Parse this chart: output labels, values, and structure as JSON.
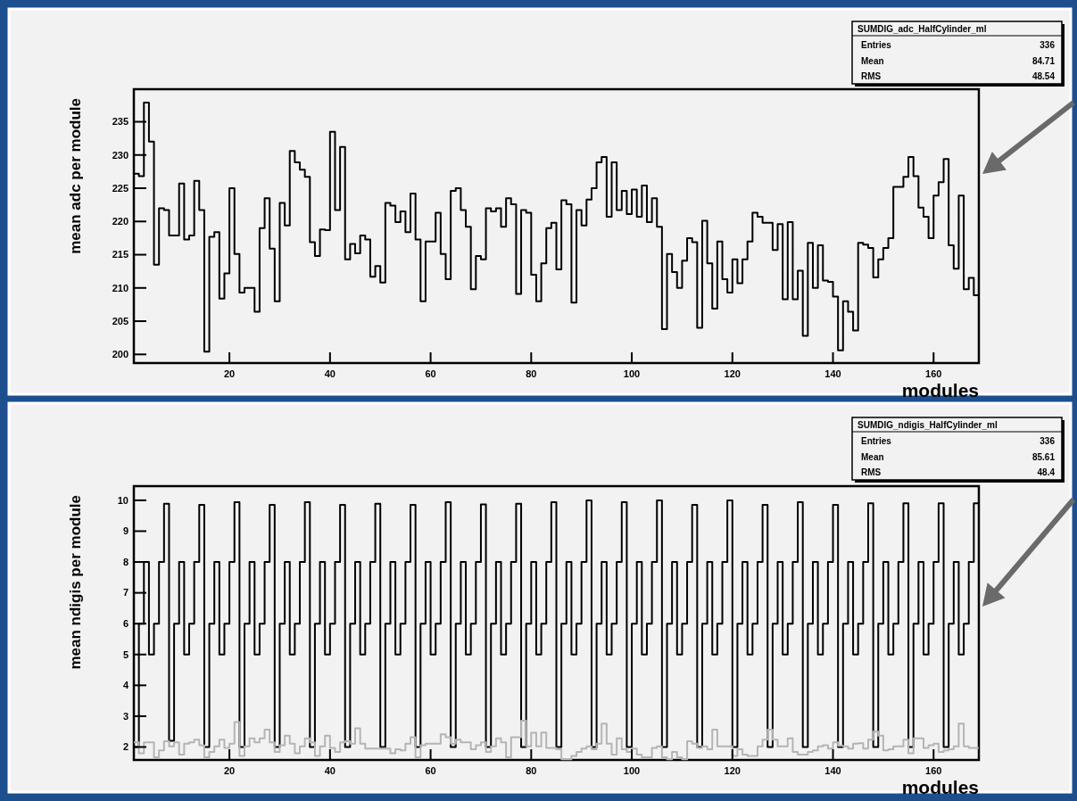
{
  "chart_data": [
    {
      "type": "histogram",
      "title": "SUMDIG_adc_HalfCylinder_ml",
      "xlabel": "modules",
      "ylabel": "mean adc per module",
      "annotations": [
        "Entries 336",
        "Mean 84.71",
        "RMS 48.54"
      ],
      "xlim": [
        1,
        169
      ],
      "xticks": [
        20,
        40,
        60,
        80,
        100,
        120,
        140,
        160
      ],
      "ylim": [
        198.7,
        239.9
      ],
      "yticks": [
        200,
        205,
        210,
        215,
        220,
        225,
        230,
        235
      ],
      "bins": [
        1,
        2,
        3,
        4,
        5,
        6,
        7,
        8,
        9,
        10,
        11,
        12,
        13,
        14,
        15,
        16,
        17,
        18,
        19,
        20,
        21,
        22,
        23,
        24,
        25,
        26,
        27,
        28,
        29,
        30,
        31,
        32,
        33,
        34,
        35,
        36,
        37,
        38,
        39,
        40,
        41,
        42,
        43,
        44,
        45,
        46,
        47,
        48,
        49,
        50,
        51,
        52,
        53,
        54,
        55,
        56,
        57,
        58,
        59,
        60,
        61,
        62,
        63,
        64,
        65,
        66,
        67,
        68,
        69,
        70,
        71,
        72,
        73,
        74,
        75,
        76,
        77,
        78,
        79,
        80,
        81,
        82,
        83,
        84,
        85,
        86,
        87,
        88,
        89,
        90,
        91,
        92,
        93,
        94,
        95,
        96,
        97,
        98,
        99,
        100,
        101,
        102,
        103,
        104,
        105,
        106,
        107,
        108,
        109,
        110,
        111,
        112,
        113,
        114,
        115,
        116,
        117,
        118,
        119,
        120,
        121,
        122,
        123,
        124,
        125,
        126,
        127,
        128,
        129,
        130,
        131,
        132,
        133,
        134,
        135,
        136,
        137,
        138,
        139,
        140,
        141,
        142,
        143,
        144,
        145,
        146,
        147,
        148,
        149,
        150,
        151,
        152,
        153,
        154,
        155,
        156,
        157,
        158,
        159,
        160,
        161,
        162,
        163,
        164,
        165,
        166,
        167,
        168,
        169
      ],
      "color": "#000000",
      "values": [
        227.2,
        226.8,
        237.9,
        232.0,
        213.5,
        222.0,
        221.7,
        217.9,
        217.9,
        225.7,
        217.3,
        217.9,
        226.1,
        221.7,
        200.4,
        217.7,
        218.4,
        208.4,
        212.2,
        225.0,
        215.1,
        209.3,
        210.0,
        210.0,
        206.4,
        219.0,
        223.5,
        215.9,
        208.0,
        222.8,
        219.4,
        230.6,
        228.9,
        227.8,
        226.7,
        216.9,
        214.8,
        218.8,
        218.7,
        233.5,
        221.7,
        231.2,
        214.3,
        216.6,
        215.2,
        217.9,
        217.3,
        211.7,
        213.3,
        210.8,
        222.8,
        222.4,
        219.9,
        221.5,
        218.4,
        224.2,
        217.3,
        208.0,
        217.0,
        217.0,
        221.3,
        215.1,
        211.3,
        224.6,
        225.0,
        221.7,
        219.2,
        209.8,
        214.8,
        214.3,
        222.0,
        221.5,
        222.0,
        219.2,
        223.5,
        222.6,
        209.1,
        221.7,
        221.3,
        212.0,
        208.0,
        213.7,
        219.0,
        219.8,
        212.8,
        223.2,
        222.6,
        207.8,
        221.7,
        219.4,
        223.3,
        225.0,
        228.9,
        229.7,
        220.7,
        228.9,
        221.7,
        224.6,
        221.1,
        224.8,
        220.7,
        225.4,
        219.9,
        223.5,
        219.2,
        203.8,
        215.1,
        212.4,
        210.0,
        214.1,
        217.5,
        216.9,
        204.0,
        220.1,
        213.7,
        206.9,
        217.0,
        211.3,
        209.3,
        214.3,
        210.7,
        214.3,
        217.0,
        221.3,
        220.7,
        219.8,
        219.8,
        215.7,
        219.6,
        208.3,
        219.9,
        208.3,
        212.6,
        202.8,
        216.8,
        210.0,
        216.4,
        211.1,
        210.9,
        208.7,
        200.6,
        208.0,
        206.4,
        203.6,
        216.8,
        216.5,
        216.0,
        211.6,
        214.3,
        216.0,
        217.5,
        225.2,
        225.2,
        226.7,
        229.7,
        226.8,
        222.1,
        220.7,
        217.5,
        223.9,
        225.9,
        229.4,
        216.4,
        212.9,
        223.9,
        209.8,
        211.5,
        208.9
      ]
    },
    {
      "type": "histogram",
      "title": "SUMDIG_ndigis_HalfCylinder_ml",
      "xlabel": "modules",
      "ylabel": "mean ndigis per module",
      "annotations": [
        "Entries 336",
        "Mean 85.61",
        "RMS 48.4"
      ],
      "xlim": [
        1,
        169
      ],
      "xticks": [
        20,
        40,
        60,
        80,
        100,
        120,
        140,
        160
      ],
      "ylim": [
        1.58,
        10.46
      ],
      "yticks": [
        2,
        3,
        4,
        5,
        6,
        7,
        8,
        9,
        10
      ],
      "bins": [
        1,
        2,
        3,
        4,
        5,
        6,
        7,
        8,
        9,
        10,
        11,
        12,
        13,
        14,
        15,
        16,
        17,
        18,
        19,
        20,
        21,
        22,
        23,
        24,
        25,
        26,
        27,
        28,
        29,
        30,
        31,
        32,
        33,
        34,
        35,
        36,
        37,
        38,
        39,
        40,
        41,
        42,
        43,
        44,
        45,
        46,
        47,
        48,
        49,
        50,
        51,
        52,
        53,
        54,
        55,
        56,
        57,
        58,
        59,
        60,
        61,
        62,
        63,
        64,
        65,
        66,
        67,
        68,
        69,
        70,
        71,
        72,
        73,
        74,
        75,
        76,
        77,
        78,
        79,
        80,
        81,
        82,
        83,
        84,
        85,
        86,
        87,
        88,
        89,
        90,
        91,
        92,
        93,
        94,
        95,
        96,
        97,
        98,
        99,
        100,
        101,
        102,
        103,
        104,
        105,
        106,
        107,
        108,
        109,
        110,
        111,
        112,
        113,
        114,
        115,
        116,
        117,
        118,
        119,
        120,
        121,
        122,
        123,
        124,
        125,
        126,
        127,
        128,
        129,
        130,
        131,
        132,
        133,
        134,
        135,
        136,
        137,
        138,
        139,
        140,
        141,
        142,
        143,
        144,
        145,
        146,
        147,
        148,
        149,
        150,
        151,
        152,
        153,
        154,
        155,
        156,
        157,
        158,
        159,
        160,
        161,
        162,
        163,
        164,
        165,
        166,
        167,
        168,
        169
      ],
      "series": [
        {
          "color": "#000000",
          "values": [
            2,
            6,
            8,
            5,
            6,
            8,
            9.89,
            2.2,
            6,
            8,
            5,
            6,
            8,
            9.85,
            2,
            6,
            8,
            5,
            6,
            8,
            9.94,
            2,
            6,
            8,
            5,
            6,
            8,
            9.85,
            2,
            6,
            8,
            5,
            6,
            8,
            9.94,
            2,
            6,
            8,
            5,
            6,
            8,
            9.85,
            2,
            6,
            8,
            5,
            6,
            8,
            9.89,
            2,
            6,
            8,
            5,
            6,
            8,
            9.85,
            2,
            6,
            8,
            5,
            6,
            8,
            9.94,
            2,
            6,
            8,
            5,
            6,
            8,
            9.87,
            2,
            6,
            8,
            5,
            6,
            8,
            9.89,
            2,
            6,
            8,
            5,
            6,
            8,
            9.94,
            2,
            6,
            8,
            5,
            6,
            8,
            10.0,
            2,
            6,
            8,
            5,
            6,
            8,
            9.94,
            2,
            6,
            8,
            5,
            6,
            8,
            10.0,
            2,
            6,
            8,
            5,
            6,
            8,
            9.85,
            2,
            6,
            8,
            5,
            6,
            8,
            10.0,
            2,
            6,
            8,
            5,
            6,
            8,
            9.85,
            2,
            6,
            8,
            5,
            6,
            8,
            9.94,
            2,
            6,
            8,
            5,
            6,
            8,
            9.85,
            2,
            6,
            8,
            5,
            6,
            8,
            9.9,
            2,
            6,
            8,
            5,
            6,
            8,
            9.9,
            2,
            6,
            8,
            5,
            6,
            8,
            9.9,
            2,
            6,
            8,
            5,
            6,
            8,
            9.9
          ]
        },
        {
          "color": "#b4b4b4",
          "values": [
            2.15,
            1.8,
            2.15,
            2.15,
            1.67,
            1.89,
            2.19,
            2.02,
            2.15,
            1.75,
            2.11,
            2.15,
            2.24,
            2.06,
            1.67,
            1.84,
            2.02,
            2.24,
            1.97,
            2.11,
            2.81,
            1.71,
            2.02,
            2.28,
            2.15,
            2.28,
            2.56,
            2.15,
            1.84,
            2.06,
            2.37,
            2.11,
            1.8,
            2.02,
            2.28,
            2.15,
            1.71,
            2.02,
            2.37,
            1.97,
            1.84,
            2.15,
            2.19,
            2.11,
            2.61,
            2.11,
            1.95,
            1.95,
            1.95,
            1.95,
            1.95,
            1.8,
            1.93,
            1.89,
            2.11,
            2.32,
            1.67,
            2.06,
            2.11,
            2.11,
            2.11,
            2.41,
            2.32,
            2.11,
            2.24,
            2.15,
            2.15,
            1.93,
            2.06,
            2.15,
            1.84,
            2.02,
            2.28,
            2.15,
            1.67,
            2.32,
            2.32,
            2.85,
            2.02,
            2.46,
            2.02,
            2.47,
            1.97,
            1.97,
            1.93,
            1.6,
            1.6,
            1.71,
            1.84,
            1.95,
            2.02,
            1.93,
            2.11,
            2.76,
            2.11,
            1.75,
            2.28,
            1.93,
            1.84,
            1.95,
            1.75,
            1.67,
            1.67,
            1.97,
            2.02,
            1.67,
            1.6,
            1.84,
            1.67,
            1.6,
            2.19,
            2.11,
            1.97,
            2.02,
            1.93,
            2.56,
            2.02,
            2.02,
            2.02,
            1.71,
            1.93,
            1.75,
            1.71,
            1.71,
            2.02,
            2.24,
            2.56,
            2.24,
            2.02,
            2.02,
            2.28,
            1.84,
            1.75,
            1.75,
            1.84,
            1.89,
            2.02,
            2.06,
            1.95,
            2.15,
            2.04,
            2.02,
            1.95,
            2.11,
            2.12,
            1.95,
            2.24,
            2.5,
            2.37,
            1.89,
            1.93,
            2.02,
            2.02,
            2.24,
            1.8,
            2.28,
            2.28,
            1.97,
            2.06,
            2.11,
            1.84,
            1.89,
            1.93,
            2.02,
            2.76,
            2.02,
            1.97,
            1.97
          ]
        }
      ]
    }
  ]
}
